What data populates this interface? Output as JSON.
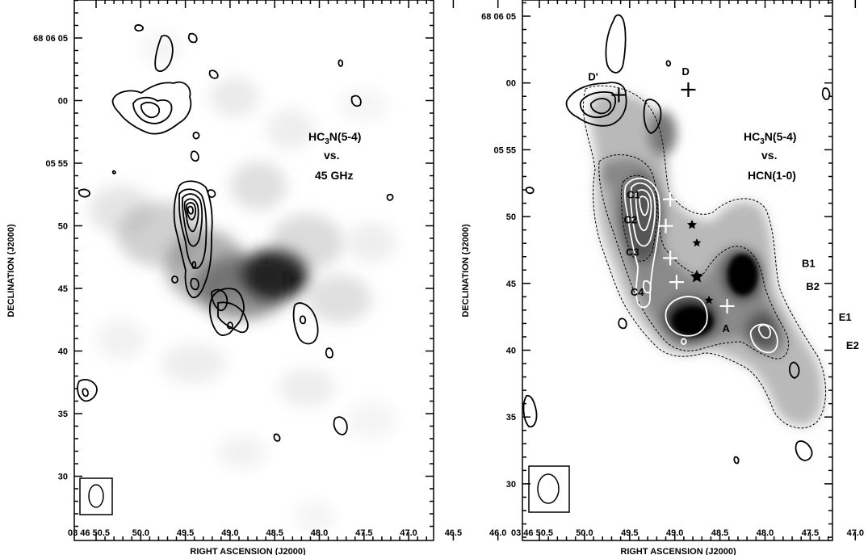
{
  "chart_data": [
    {
      "type": "heatmap",
      "xlabel": "RIGHT ASCENSION (J2000)",
      "ylabel": "DECLINATION (J2000)",
      "x_ticks": [
        "03 46 50.5",
        "50.0",
        "49.5",
        "49.0",
        "48.5",
        "48.0",
        "47.5",
        "47.0",
        "46.5",
        "46.0"
      ],
      "y_ticks": [
        "68 06 05",
        "00",
        "05 55",
        "50",
        "45",
        "40",
        "35",
        "30"
      ],
      "label_lines": [
        "HC3N(5-4)",
        "vs.",
        "45 GHz"
      ],
      "contours": "HC3N(5-4)",
      "greyscale": "45 GHz"
    },
    {
      "type": "heatmap",
      "xlabel": "RIGHT ASCENSION (J2000)",
      "ylabel": "DECLINATION (J2000)",
      "x_ticks": [
        "03 46 50.5",
        "50.0",
        "49.5",
        "49.0",
        "48.5",
        "48.0",
        "47.5",
        "47.0",
        "46.5"
      ],
      "y_ticks": [
        "68 06 05",
        "00",
        "05 55",
        "50",
        "45",
        "40",
        "35",
        "30"
      ],
      "label_lines": [
        "HC3N(5-4)",
        "vs.",
        "HCN(1-0)"
      ],
      "contours": "HC3N(5-4)",
      "greyscale": "HCN(1-0)",
      "sources": [
        {
          "name": "D'",
          "ra": 49.62,
          "dec": 59.1
        },
        {
          "name": "D",
          "ra": 48.85,
          "dec": 59.5
        },
        {
          "name": "C1",
          "ra": 49.05,
          "dec": 51.3
        },
        {
          "name": "C2",
          "ra": 49.1,
          "dec": 49.3
        },
        {
          "name": "C3",
          "ra": 49.05,
          "dec": 46.9
        },
        {
          "name": "C4",
          "ra": 48.98,
          "dec": 45.1
        },
        {
          "name": "A",
          "ra": 48.42,
          "dec": 43.3
        },
        {
          "name": "B1",
          "ra": 47.7,
          "dec": 46.4
        },
        {
          "name": "B2",
          "ra": 47.67,
          "dec": 45.3
        },
        {
          "name": "E1",
          "ra": 47.47,
          "dec": 42.4
        },
        {
          "name": "E2",
          "ra": 47.37,
          "dec": 41.0
        }
      ]
    }
  ]
}
